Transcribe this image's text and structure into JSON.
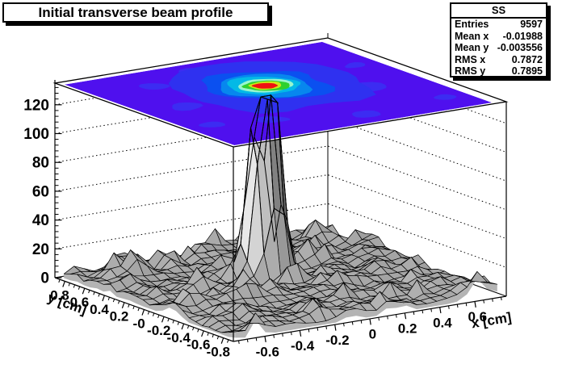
{
  "title_box": {
    "text": "Initial transverse beam profile"
  },
  "stats_box": {
    "title": "SS",
    "rows": [
      {
        "label": "Entries",
        "value": "9597"
      },
      {
        "label": "Mean x",
        "value": "-0.01988"
      },
      {
        "label": "Mean y",
        "value": "-0.003556"
      },
      {
        "label": "RMS x",
        "value": "0.7872"
      },
      {
        "label": "RMS y",
        "value": "0.7895"
      }
    ]
  },
  "chart_data": {
    "type": "surface",
    "title": "Initial transverse beam profile",
    "xlabel": "x [cm]",
    "ylabel": "y [cm]",
    "entries": 9597,
    "mean_x": -0.01988,
    "mean_y": -0.003556,
    "rms_x": 0.7872,
    "rms_y": 0.7895,
    "x_range": [
      -0.78,
      0.78
    ],
    "y_range": [
      -0.9,
      0.9
    ],
    "z_range": [
      0,
      135
    ],
    "x_major_ticks": [
      {
        "v": -0.6,
        "label": "-0.6"
      },
      {
        "v": -0.4,
        "label": "-0.4"
      },
      {
        "v": -0.2,
        "label": "-0.2"
      },
      {
        "v": 0,
        "label": "0"
      },
      {
        "v": 0.2,
        "label": "0.2"
      },
      {
        "v": 0.4,
        "label": "0.4"
      },
      {
        "v": 0.6,
        "label": "0.6"
      }
    ],
    "y_major_ticks": [
      {
        "v": 0.8,
        "label": "0.8"
      },
      {
        "v": 0.6,
        "label": "0.6"
      },
      {
        "v": 0.4,
        "label": "0.4"
      },
      {
        "v": 0.2,
        "label": "0.2"
      },
      {
        "v": 0,
        "label": "-0"
      },
      {
        "v": -0.2,
        "label": "-0.2"
      },
      {
        "v": -0.4,
        "label": "-0.4"
      },
      {
        "v": -0.6,
        "label": "-0.6"
      },
      {
        "v": -0.8,
        "label": "-0.8"
      }
    ],
    "z_major_ticks": [
      {
        "v": 0,
        "label": "0"
      },
      {
        "v": 20,
        "label": "20"
      },
      {
        "v": 40,
        "label": "40"
      },
      {
        "v": 60,
        "label": "60"
      },
      {
        "v": 80,
        "label": "80"
      },
      {
        "v": 100,
        "label": "100"
      },
      {
        "v": 120,
        "label": "120"
      }
    ],
    "xy_minor_step": 0.05,
    "z_minor_step": 4,
    "grid_n": 26,
    "peak": {
      "u": 0.51,
      "v": 0.6,
      "height": 126,
      "sigma": 0.026,
      "plateau": 0.028
    },
    "noise": {
      "seed": 13,
      "base": 1,
      "amp": 17,
      "pow": 1.7,
      "spike_p": 0.94,
      "spike_add": 5
    },
    "colors": {
      "background": "#ffffff",
      "plane_bg": "#4f10ee",
      "patch": "#3c2cf2",
      "mesh": "#000000",
      "skirt": "#b4b4b4",
      "axis": "#000000"
    },
    "contour": {
      "center": {
        "u": 0.51,
        "v": 0.6
      },
      "rings": [
        {
          "r": 0.315,
          "irr": 0.5,
          "color": "#2f31f0"
        },
        {
          "r": 0.2,
          "irr": 0.35,
          "color": "#0b50f0"
        },
        {
          "r": 0.152,
          "irr": 0.3,
          "color": "#0787ee"
        },
        {
          "r": 0.118,
          "irr": 0.28,
          "color": "#03b9e6"
        },
        {
          "r": 0.09,
          "irr": 0.24,
          "color": "#98f5cd"
        },
        {
          "r": 0.07,
          "irr": 0.22,
          "color": "#2ed12e"
        },
        {
          "r": 0.051,
          "irr": 0.25,
          "color": "#cde619"
        },
        {
          "r": 0.0395,
          "irr": 0.2,
          "color": "#f01111"
        }
      ],
      "patches": [
        {
          "u": 0.16,
          "v": 0.52,
          "r": 0.055
        },
        {
          "u": 0.3,
          "v": 0.22,
          "r": 0.05
        },
        {
          "u": 0.76,
          "v": 0.4,
          "r": 0.055
        },
        {
          "u": 0.64,
          "v": 0.76,
          "r": 0.06
        },
        {
          "u": 0.42,
          "v": 0.88,
          "r": 0.045
        },
        {
          "u": 0.87,
          "v": 0.66,
          "r": 0.04
        },
        {
          "u": 0.22,
          "v": 0.78,
          "r": 0.045
        },
        {
          "u": 0.56,
          "v": 0.12,
          "r": 0.05
        },
        {
          "u": 0.1,
          "v": 0.28,
          "r": 0.04
        },
        {
          "u": 0.88,
          "v": 0.16,
          "r": 0.035
        },
        {
          "u": 0.35,
          "v": 0.6,
          "r": 0.05
        },
        {
          "u": 0.7,
          "v": 0.58,
          "r": 0.045
        }
      ],
      "specks": [
        {
          "u": 0.4,
          "v": 0.55,
          "r": 0.02,
          "color": "#0b50f0"
        },
        {
          "u": 0.635,
          "v": 0.6,
          "r": 0.015,
          "color": "#0787ee"
        },
        {
          "u": 0.3,
          "v": 0.47,
          "r": 0.013,
          "color": "#0b50f0"
        }
      ]
    }
  }
}
